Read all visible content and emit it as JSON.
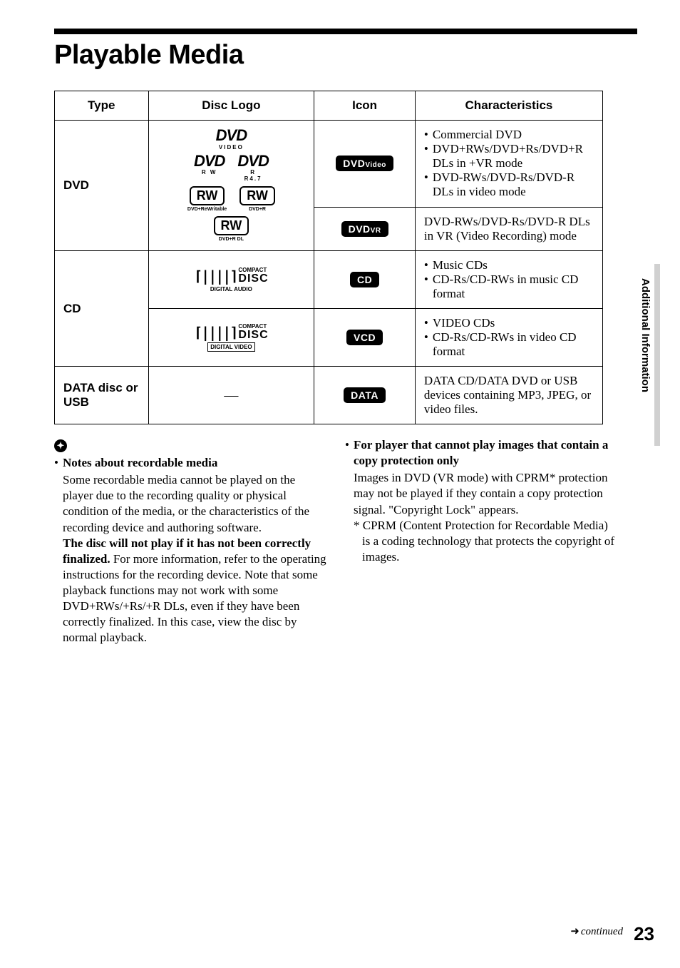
{
  "page_title": "Playable Media",
  "side_tab": "Additional Information",
  "continued_label": "continued",
  "page_number": "23",
  "table": {
    "headers": {
      "type": "Type",
      "logo": "Disc Logo",
      "icon": "Icon",
      "char": "Characteristics"
    },
    "dvd": {
      "type_label": "DVD",
      "logos": {
        "video_sub": "VIDEO",
        "rw_sub": "R W",
        "r47_sub_1": "R",
        "r47_sub_2": "R4.7",
        "rw_badge": "RW",
        "rw_rewritable": "DVD+ReWritable",
        "rw_plus_r": "DVD+R",
        "rw_dl": "DVD+R DL"
      },
      "icon_video_main": "DVD",
      "icon_video_sub": "Video",
      "char_video": [
        "Commercial DVD",
        "DVD+RWs/DVD+Rs/DVD+R DLs in +VR mode",
        "DVD-RWs/DVD-Rs/DVD-R DLs in video mode"
      ],
      "icon_vr_main": "DVD",
      "icon_vr_sub": "VR",
      "char_vr": "DVD-RWs/DVD-Rs/DVD-R DLs in VR (Video Recording) mode"
    },
    "cd": {
      "type_label": "CD",
      "logo_compact": "COMPACT",
      "logo_disc": "DISC",
      "logo_audio": "DIGITAL AUDIO",
      "logo_video": "DIGITAL VIDEO",
      "icon_cd": "CD",
      "char_cd": [
        "Music CDs",
        "CD-Rs/CD-RWs in music CD format"
      ],
      "icon_vcd": "VCD",
      "char_vcd": [
        "VIDEO CDs",
        "CD-Rs/CD-RWs in video CD format"
      ]
    },
    "data": {
      "type_label": "DATA disc or USB",
      "logo_dash": "—",
      "icon_data": "DATA",
      "char_data": "DATA CD/DATA DVD or USB devices containing MP3, JPEG, or video files."
    }
  },
  "notes": {
    "icon_glyph": "✦",
    "left": {
      "heading": "Notes about recordable media",
      "body_1": "Some recordable media cannot be played on the player due to the recording quality or physical condition of the media, or the characteristics of the recording device and authoring software.",
      "bold_2": "The disc will not play if it has not been correctly finalized.",
      "body_2": " For more information, refer to the operating instructions for the recording device. Note that some playback functions may not work with some DVD+RWs/+Rs/+R DLs, even if they have been correctly finalized. In this case, view the disc by normal playback."
    },
    "right": {
      "heading": "For player that cannot play images that contain a copy protection only",
      "body_1": "Images in DVD (VR mode) with CPRM* protection may not be played if they contain a copy protection signal. \"Copyright Lock\" appears.",
      "footnote": "* CPRM (Content Protection for Recordable Media) is a coding technology that protects the copyright of images."
    }
  }
}
